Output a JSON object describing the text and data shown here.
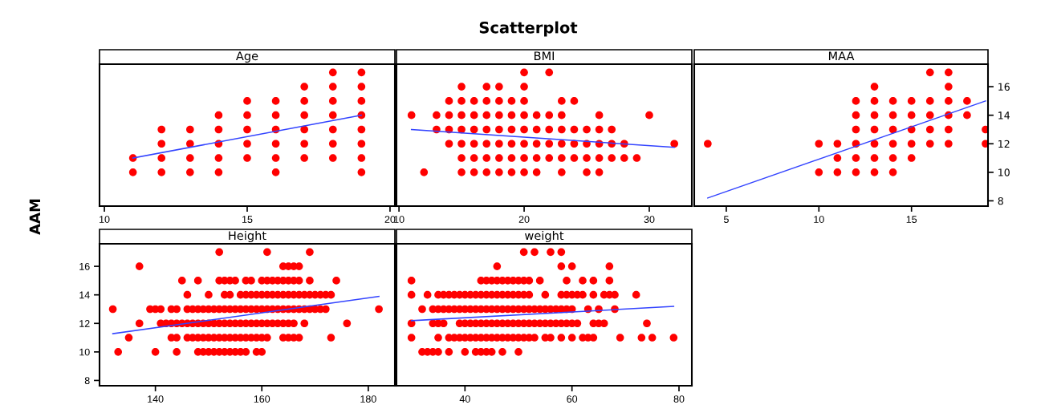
{
  "chart_data": [
    {
      "type": "scatter",
      "title": "Age",
      "ylabel": "AAM",
      "annotations": [
        "Scatterplot"
      ],
      "xlim": [
        9.83,
        20.17
      ],
      "xticks": [
        10,
        15,
        20
      ],
      "ylim": [
        7.63,
        17.58
      ],
      "tick_labels": "x",
      "series": [
        {
          "marker": "circle",
          "color": "#ff0000",
          "x": [
            11,
            11,
            12,
            12,
            12,
            12,
            13,
            13,
            13,
            13,
            14,
            14,
            14,
            14,
            14,
            15,
            15,
            15,
            15,
            15,
            16,
            16,
            16,
            16,
            16,
            16,
            17,
            17,
            17,
            17,
            17,
            17,
            18,
            18,
            18,
            18,
            18,
            18,
            18,
            19,
            19,
            19,
            19,
            19,
            19,
            19,
            19
          ],
          "values": [
            11,
            10,
            13,
            12,
            11,
            10,
            13,
            12,
            11,
            10,
            14,
            13,
            12,
            11,
            10,
            15,
            14,
            13,
            12,
            11,
            15,
            14,
            13,
            12,
            11,
            10,
            16,
            15,
            14,
            13,
            12,
            11,
            17,
            16,
            15,
            14,
            13,
            12,
            11,
            17,
            16,
            15,
            14,
            13,
            12,
            11,
            10
          ]
        },
        {
          "type": "line",
          "color": "#3344ff",
          "line_style": "solid",
          "x": [
            11,
            19
          ],
          "values": [
            11.0,
            14.0
          ]
        }
      ]
    },
    {
      "type": "scatter",
      "title": "BMI",
      "xlim": [
        9.8,
        33.4
      ],
      "xticks": [
        10,
        20,
        30
      ],
      "ylim": [
        7.63,
        17.58
      ],
      "tick_labels": "x",
      "series": [
        {
          "marker": "circle",
          "color": "#ff0000",
          "x": [
            20,
            22,
            15,
            17,
            18,
            20,
            14,
            15,
            16,
            17,
            18,
            19,
            20,
            23,
            24,
            11,
            13,
            14,
            15,
            16,
            17,
            18,
            19,
            20,
            21,
            22,
            23,
            26,
            30,
            13,
            14,
            15,
            16,
            17,
            18,
            19,
            20,
            21,
            22,
            23,
            24,
            25,
            26,
            27,
            14,
            15,
            16,
            17,
            18,
            19,
            20,
            21,
            22,
            23,
            24,
            25,
            26,
            27,
            28,
            32,
            15,
            16,
            17,
            18,
            19,
            20,
            21,
            22,
            23,
            24,
            25,
            26,
            27,
            28,
            29,
            12,
            15,
            16,
            17,
            18,
            19,
            20,
            21,
            23,
            25,
            26
          ],
          "values": [
            17,
            17,
            16,
            16,
            16,
            16,
            15,
            15,
            15,
            15,
            15,
            15,
            15,
            15,
            15,
            14,
            14,
            14,
            14,
            14,
            14,
            14,
            14,
            14,
            14,
            14,
            14,
            14,
            14,
            13,
            13,
            13,
            13,
            13,
            13,
            13,
            13,
            13,
            13,
            13,
            13,
            13,
            13,
            13,
            12,
            12,
            12,
            12,
            12,
            12,
            12,
            12,
            12,
            12,
            12,
            12,
            12,
            12,
            12,
            12,
            11,
            11,
            11,
            11,
            11,
            11,
            11,
            11,
            11,
            11,
            11,
            11,
            11,
            11,
            11,
            10,
            10,
            10,
            10,
            10,
            10,
            10,
            10,
            10,
            10,
            10
          ]
        },
        {
          "type": "line",
          "color": "#3344ff",
          "line_style": "solid",
          "x": [
            11,
            32
          ],
          "values": [
            13.0,
            11.75
          ]
        }
      ]
    },
    {
      "type": "scatter",
      "title": "MAA",
      "xlim": [
        3.27,
        19.13
      ],
      "xticks": [
        5,
        10,
        15
      ],
      "ylim": [
        7.63,
        17.58
      ],
      "yticks": [
        8,
        10,
        12,
        14,
        16
      ],
      "series": [
        {
          "marker": "circle",
          "color": "#ff0000",
          "x": [
            16,
            17,
            13,
            17,
            12,
            13,
            14,
            15,
            16,
            17,
            18,
            12,
            13,
            14,
            15,
            16,
            17,
            18,
            12,
            13,
            14,
            15,
            16,
            17,
            19,
            4,
            10,
            11,
            12,
            13,
            14,
            15,
            16,
            17,
            19,
            11,
            12,
            13,
            14,
            15,
            10,
            11,
            12,
            13,
            14
          ],
          "values": [
            17,
            17,
            16,
            16,
            15,
            15,
            15,
            15,
            15,
            15,
            15,
            14,
            14,
            14,
            14,
            14,
            14,
            14,
            13,
            13,
            13,
            13,
            13,
            13,
            13,
            12,
            12,
            12,
            12,
            12,
            12,
            12,
            12,
            12,
            12,
            11,
            11,
            11,
            11,
            11,
            10,
            10,
            10,
            10,
            10
          ]
        },
        {
          "type": "line",
          "color": "#3344ff",
          "line_style": "solid",
          "x": [
            4,
            19
          ],
          "values": [
            8.2,
            15.0
          ]
        }
      ]
    },
    {
      "type": "scatter",
      "title": "Height",
      "xlim": [
        129.5,
        185.0
      ],
      "xticks": [
        140,
        160,
        180
      ],
      "ylim": [
        7.63,
        17.58
      ],
      "yticks": [
        8,
        10,
        12,
        14,
        16
      ],
      "series": [
        {
          "marker": "circle",
          "color": "#ff0000",
          "x": [
            152,
            161,
            169,
            137,
            164,
            165,
            166,
            167,
            145,
            148,
            152,
            153,
            154,
            155,
            157,
            158,
            160,
            161,
            162,
            163,
            164,
            165,
            166,
            167,
            169,
            174,
            146,
            150,
            153,
            154,
            156,
            157,
            158,
            159,
            160,
            161,
            162,
            163,
            164,
            165,
            166,
            167,
            168,
            169,
            170,
            171,
            172,
            173,
            132,
            139,
            140,
            141,
            143,
            144,
            146,
            147,
            148,
            149,
            150,
            151,
            152,
            153,
            154,
            155,
            156,
            157,
            158,
            159,
            160,
            161,
            162,
            163,
            164,
            165,
            166,
            167,
            168,
            169,
            170,
            171,
            172,
            182,
            137,
            141,
            142,
            143,
            144,
            145,
            146,
            147,
            148,
            149,
            150,
            151,
            152,
            153,
            154,
            155,
            156,
            157,
            158,
            159,
            160,
            161,
            162,
            163,
            164,
            165,
            166,
            168,
            176,
            135,
            143,
            144,
            146,
            147,
            148,
            149,
            150,
            151,
            152,
            153,
            154,
            155,
            156,
            157,
            158,
            159,
            160,
            161,
            164,
            165,
            166,
            167,
            173,
            133,
            140,
            144,
            148,
            149,
            150,
            151,
            152,
            153,
            154,
            155,
            156,
            157,
            159,
            160
          ],
          "values": [
            17,
            17,
            17,
            16,
            16,
            16,
            16,
            16,
            15,
            15,
            15,
            15,
            15,
            15,
            15,
            15,
            15,
            15,
            15,
            15,
            15,
            15,
            15,
            15,
            15,
            15,
            14,
            14,
            14,
            14,
            14,
            14,
            14,
            14,
            14,
            14,
            14,
            14,
            14,
            14,
            14,
            14,
            14,
            14,
            14,
            14,
            14,
            14,
            13,
            13,
            13,
            13,
            13,
            13,
            13,
            13,
            13,
            13,
            13,
            13,
            13,
            13,
            13,
            13,
            13,
            13,
            13,
            13,
            13,
            13,
            13,
            13,
            13,
            13,
            13,
            13,
            13,
            13,
            13,
            13,
            13,
            13,
            12,
            12,
            12,
            12,
            12,
            12,
            12,
            12,
            12,
            12,
            12,
            12,
            12,
            12,
            12,
            12,
            12,
            12,
            12,
            12,
            12,
            12,
            12,
            12,
            12,
            12,
            12,
            12,
            12,
            11,
            11,
            11,
            11,
            11,
            11,
            11,
            11,
            11,
            11,
            11,
            11,
            11,
            11,
            11,
            11,
            11,
            11,
            11,
            11,
            11,
            11,
            11,
            11,
            10,
            10,
            10,
            10,
            10,
            10,
            10,
            10,
            10,
            10,
            10,
            10,
            10,
            10,
            10
          ]
        },
        {
          "type": "line",
          "color": "#3344ff",
          "line_style": "solid",
          "x": [
            132,
            182
          ],
          "values": [
            11.28,
            13.89
          ]
        }
      ]
    },
    {
      "type": "scatter",
      "title": "weight",
      "xlim": [
        27.2,
        82.4
      ],
      "xticks": [
        40,
        60,
        80
      ],
      "ylim": [
        7.63,
        17.58
      ],
      "tick_labels": "x",
      "series": [
        {
          "marker": "circle",
          "color": "#ff0000",
          "x": [
            51,
            53,
            56,
            58,
            46,
            58,
            60,
            67,
            30,
            43,
            44,
            45,
            46,
            47,
            48,
            49,
            50,
            51,
            52,
            54,
            59,
            62,
            64,
            67,
            30,
            33,
            35,
            36,
            37,
            38,
            39,
            40,
            41,
            42,
            43,
            44,
            45,
            46,
            47,
            48,
            49,
            50,
            51,
            52,
            55,
            58,
            59,
            60,
            61,
            62,
            64,
            66,
            67,
            68,
            72,
            32,
            34,
            35,
            36,
            37,
            38,
            39,
            40,
            41,
            42,
            43,
            44,
            45,
            46,
            47,
            48,
            49,
            50,
            51,
            52,
            53,
            54,
            55,
            56,
            57,
            58,
            59,
            60,
            63,
            65,
            68,
            30,
            34,
            35,
            36,
            39,
            40,
            41,
            42,
            43,
            44,
            45,
            46,
            47,
            48,
            49,
            50,
            51,
            52,
            53,
            54,
            55,
            56,
            57,
            58,
            59,
            60,
            61,
            64,
            65,
            66,
            74,
            30,
            35,
            37,
            38,
            39,
            40,
            41,
            42,
            43,
            44,
            45,
            46,
            47,
            48,
            49,
            50,
            51,
            52,
            53,
            55,
            56,
            58,
            60,
            62,
            63,
            64,
            69,
            73,
            75,
            79,
            32,
            33,
            34,
            35,
            37,
            40,
            42,
            43,
            44,
            45,
            47,
            50
          ],
          "values": [
            17,
            17,
            17,
            17,
            16,
            16,
            16,
            16,
            15,
            15,
            15,
            15,
            15,
            15,
            15,
            15,
            15,
            15,
            15,
            15,
            15,
            15,
            15,
            15,
            14,
            14,
            14,
            14,
            14,
            14,
            14,
            14,
            14,
            14,
            14,
            14,
            14,
            14,
            14,
            14,
            14,
            14,
            14,
            14,
            14,
            14,
            14,
            14,
            14,
            14,
            14,
            14,
            14,
            14,
            14,
            13,
            13,
            13,
            13,
            13,
            13,
            13,
            13,
            13,
            13,
            13,
            13,
            13,
            13,
            13,
            13,
            13,
            13,
            13,
            13,
            13,
            13,
            13,
            13,
            13,
            13,
            13,
            13,
            13,
            13,
            13,
            12,
            12,
            12,
            12,
            12,
            12,
            12,
            12,
            12,
            12,
            12,
            12,
            12,
            12,
            12,
            12,
            12,
            12,
            12,
            12,
            12,
            12,
            12,
            12,
            12,
            12,
            12,
            12,
            12,
            12,
            12,
            11,
            11,
            11,
            11,
            11,
            11,
            11,
            11,
            11,
            11,
            11,
            11,
            11,
            11,
            11,
            11,
            11,
            11,
            11,
            11,
            11,
            11,
            11,
            11,
            11,
            11,
            11,
            11,
            11,
            11,
            10,
            10,
            10,
            10,
            10,
            10,
            10,
            10,
            10,
            10,
            10,
            10
          ]
        },
        {
          "type": "line",
          "color": "#3344ff",
          "line_style": "solid",
          "x": [
            30,
            79
          ],
          "values": [
            12.19,
            13.19
          ]
        }
      ]
    }
  ]
}
